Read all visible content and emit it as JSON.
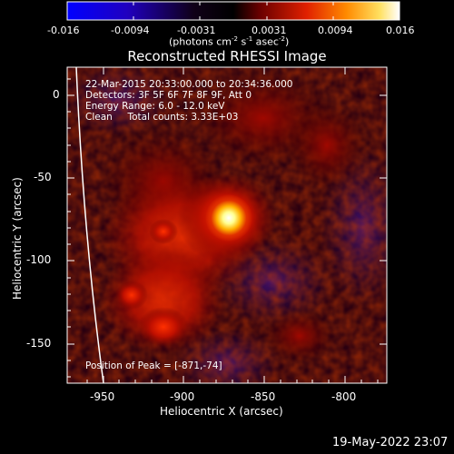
{
  "colorbar": {
    "ticks": [
      "-0.016",
      "-0.0094",
      "-0.0031",
      "0.0031",
      "0.0094",
      "0.016"
    ],
    "units_prefix": "(photons cm",
    "units_exp1": "-2",
    "units_mid": " s",
    "units_exp2": "-1",
    "units_mid2": " asec",
    "units_exp3": "-2",
    "units_suffix": ")",
    "gradient_stops": [
      "#0000ff",
      "#3a00d8",
      "#000000",
      "#8a0000",
      "#ff3a00",
      "#ff9900",
      "#ffff80",
      "#ffffff"
    ]
  },
  "plot": {
    "title": "Reconstructed RHESSI Image",
    "info_lines": [
      "22-Mar-2015 20:33:00.000 to 20:34:36.000",
      "Detectors: 3F 5F 6F 7F 8F 9F, Att 0",
      "Energy Range: 6.0 - 12.0 keV",
      "Clean     Total counts: 3.33E+03"
    ],
    "peak_text": "Position of Peak = [-871,-74]",
    "xlabel": "Heliocentric X (arcsec)",
    "ylabel": "Heliocentric Y (arcsec)",
    "x_ticks": [
      "-950",
      "-900",
      "-850",
      "-800"
    ],
    "y_ticks": [
      "0",
      "-50",
      "-100",
      "-150"
    ]
  },
  "footer": {
    "timestamp": "19-May-2022 23:07"
  }
}
